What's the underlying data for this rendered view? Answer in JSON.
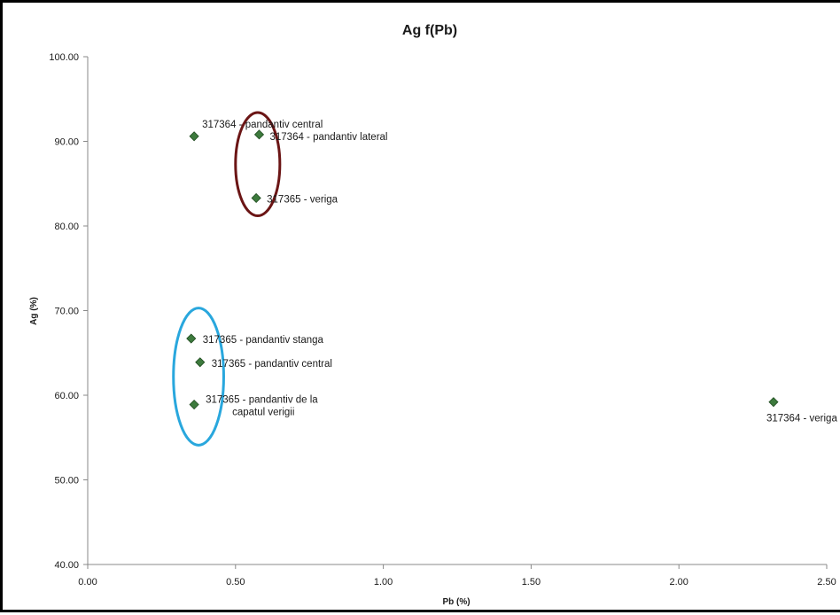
{
  "chart_data": {
    "type": "scatter",
    "title": "Ag f(Pb)",
    "xlabel": "Pb (%)",
    "ylabel": "Ag (%)",
    "xlim": [
      0,
      2.5
    ],
    "ylim": [
      40,
      100
    ],
    "xticks": [
      "0.00",
      "0.50",
      "1.00",
      "1.50",
      "2.00",
      "2.50"
    ],
    "yticks": [
      "40.00",
      "50.00",
      "60.00",
      "70.00",
      "80.00",
      "90.00",
      "100.00"
    ],
    "grid": false,
    "marker_color": "#3d7a3d",
    "points": [
      {
        "x": 0.36,
        "y": 90.6,
        "label": "317364 - pandantiv central"
      },
      {
        "x": 0.58,
        "y": 90.8,
        "label": "317364 - pandantiv lateral"
      },
      {
        "x": 0.57,
        "y": 83.3,
        "label": "317365 - veriga"
      },
      {
        "x": 0.35,
        "y": 66.7,
        "label": "317365 - pandantiv stanga"
      },
      {
        "x": 0.38,
        "y": 63.9,
        "label": "317365 - pandantiv central"
      },
      {
        "x": 0.36,
        "y": 58.9,
        "label": "317365 - pandantiv de la capatul verigii"
      },
      {
        "x": 2.32,
        "y": 59.2,
        "label": "317364 - veriga"
      }
    ],
    "annotations": [
      {
        "type": "ellipse",
        "color": "#6b1515",
        "cx": 0.575,
        "cy": 87.3,
        "rx": 0.075,
        "ry": 6.1
      },
      {
        "type": "ellipse",
        "color": "#29a7dd",
        "cx": 0.375,
        "cy": 62.2,
        "rx": 0.085,
        "ry": 8.1
      }
    ]
  }
}
